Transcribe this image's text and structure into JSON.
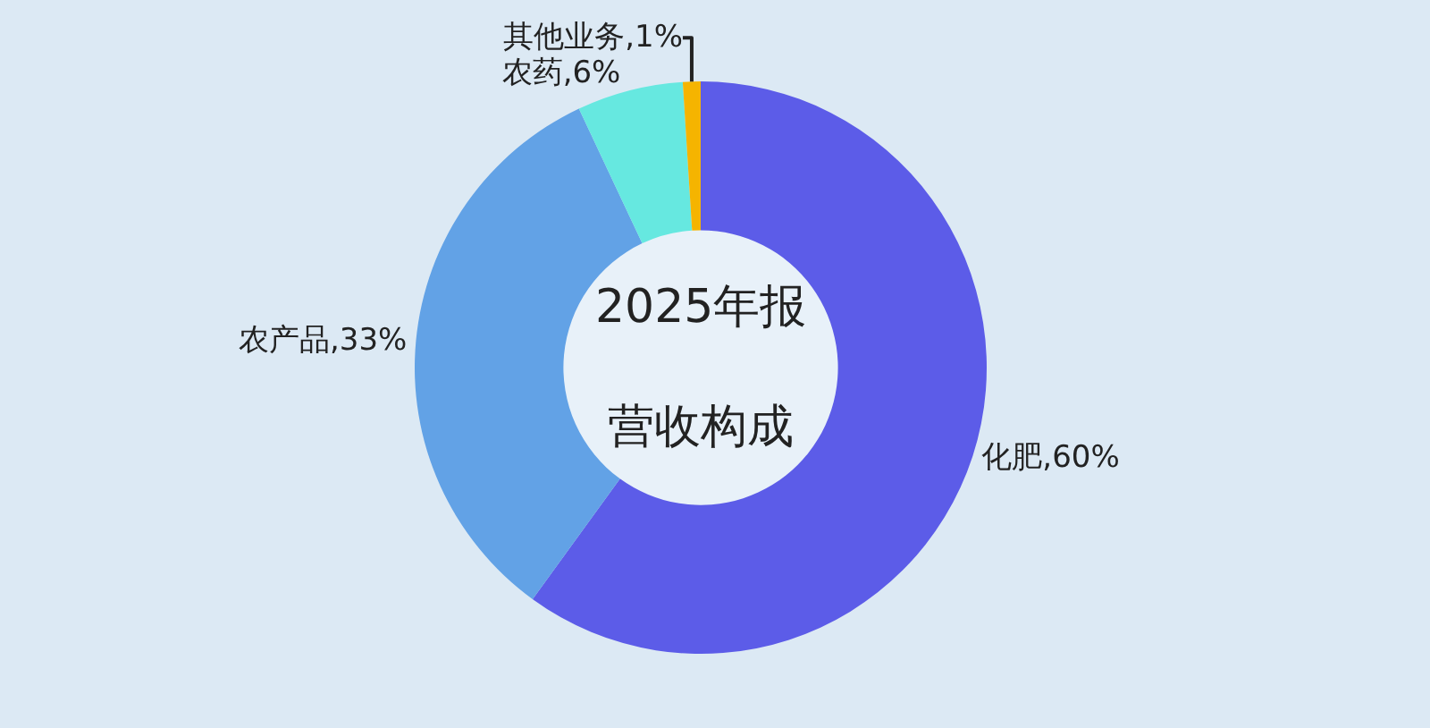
{
  "chart_data": {
    "type": "donut",
    "annotations": [
      "2025年报",
      "营收构成"
    ],
    "categories": [
      "化肥",
      "农产品",
      "农药",
      "其他业务"
    ],
    "values": [
      60,
      33,
      6,
      1
    ],
    "value_labels": [
      "60%",
      "33%",
      "6%",
      "1%"
    ],
    "colors": [
      "#5c5ce8",
      "#62a2e6",
      "#66e8e0",
      "#f5b400"
    ],
    "legend": false
  }
}
